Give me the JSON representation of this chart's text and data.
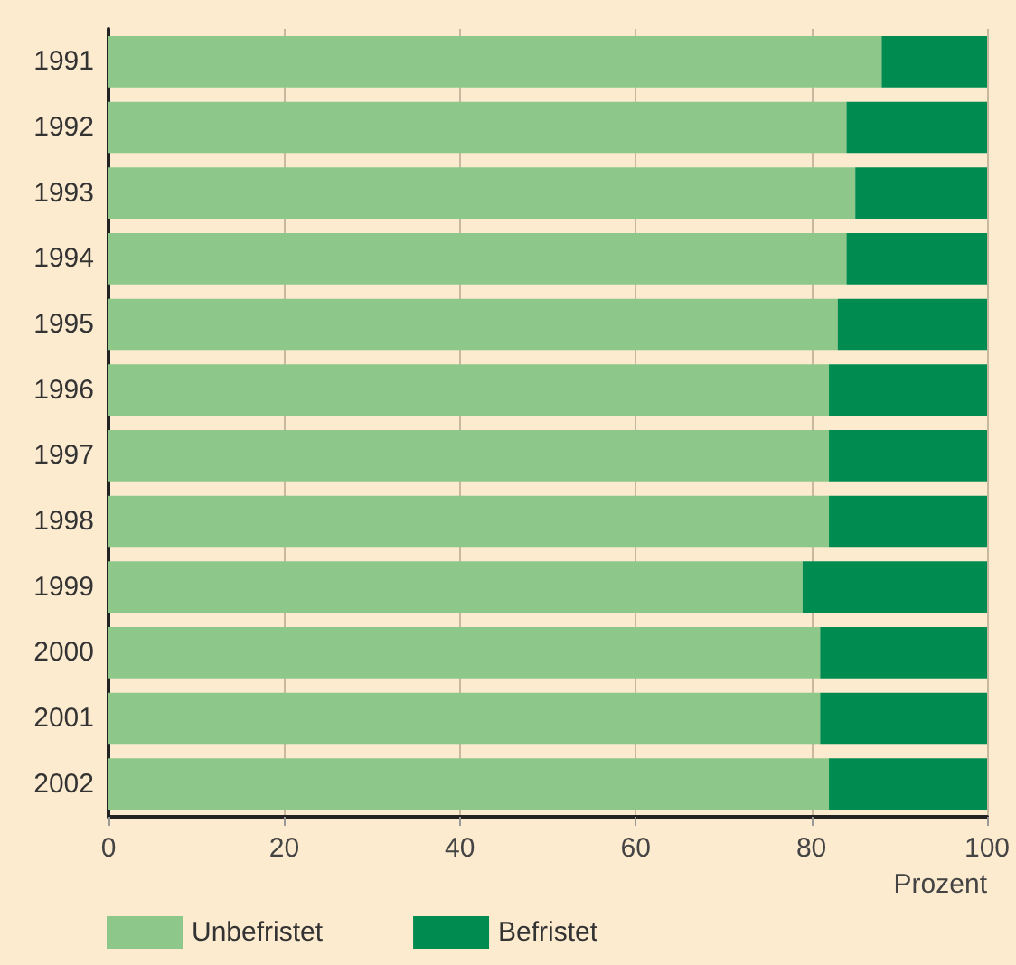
{
  "chart_data": {
    "type": "bar",
    "orientation": "horizontal",
    "stacked": true,
    "xlabel": "Prozent",
    "categories": [
      "1991",
      "1992",
      "1993",
      "1994",
      "1995",
      "1996",
      "1997",
      "1998",
      "1999",
      "2000",
      "2001",
      "2002"
    ],
    "series": [
      {
        "name": "Unbefristet",
        "color": "#8dc88a",
        "values": [
          88,
          84,
          85,
          84,
          83,
          82,
          82,
          82,
          79,
          81,
          81,
          82
        ]
      },
      {
        "name": "Befristet",
        "color": "#008b50",
        "values": [
          12,
          16,
          15,
          16,
          17,
          18,
          18,
          18,
          21,
          19,
          19,
          18
        ]
      }
    ],
    "xlim": [
      0,
      100
    ],
    "xticks": [
      0,
      20,
      40,
      60,
      80,
      100
    ],
    "grid": "x",
    "legend": "bottom left"
  }
}
